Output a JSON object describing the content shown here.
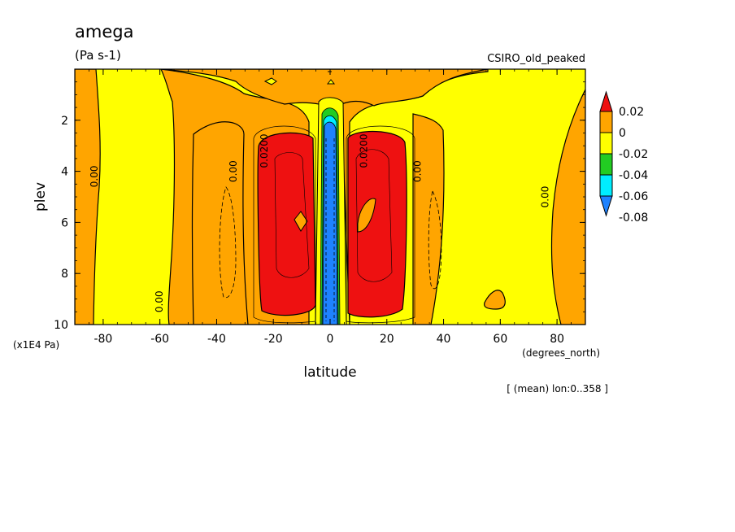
{
  "chart_data": {
    "type": "contour",
    "title": "amega",
    "units": "(Pa s-1)",
    "dataset": "CSIRO_old_peaked",
    "xlabel": "latitude",
    "ylabel": "plev",
    "x_units": "(degrees_north)",
    "y_units": "(x1E4 Pa)",
    "footer": "[ (mean) lon:0..358 ]",
    "xlim": [
      -90,
      90
    ],
    "ylim": [
      10,
      0
    ],
    "x_ticks": [
      "-80",
      "-60",
      "-40",
      "-20",
      "0",
      "20",
      "40",
      "60",
      "80"
    ],
    "x_tick_values": [
      -80,
      -60,
      -40,
      -20,
      0,
      20,
      40,
      60,
      80
    ],
    "y_ticks": [
      "2",
      "4",
      "6",
      "8",
      "10"
    ],
    "y_tick_values": [
      2,
      4,
      6,
      8,
      10
    ],
    "colorbar": {
      "labels": [
        "0.02",
        "0",
        "-0.02",
        "-0.04",
        "-0.06",
        "-0.08"
      ],
      "levels": [
        0.02,
        0,
        -0.02,
        -0.04,
        -0.06,
        -0.08
      ],
      "colors": [
        "#ee1111",
        "#ffa500",
        "#ffff00",
        "#22cc22",
        "#00eeff",
        "#1e82ff"
      ]
    },
    "contour_labels": [
      {
        "text": "0.00",
        "lat": -82,
        "plev": 4.2
      },
      {
        "text": "0.00",
        "lat": -59,
        "plev": 9.1
      },
      {
        "text": "0.00",
        "lat": -33,
        "plev": 4.0
      },
      {
        "text": "0.0200",
        "lat": -22,
        "plev": 3.2
      },
      {
        "text": "0.0200",
        "lat": 13,
        "plev": 3.2
      },
      {
        "text": "0.00",
        "lat": 32,
        "plev": 4.0
      },
      {
        "text": "0.00",
        "lat": 77,
        "plev": 5.0
      }
    ],
    "regions": {
      "background": "yellow (-0.02..0)",
      "orange_positive": "0..0.02 band over 20S-30N outside equator, polar edges",
      "red_positive": ">0.02 cores near 20S and 15N, 2.5-9.5 x1E4 Pa",
      "blue_negative": "<-0.08 equatorial core, 1.5-10 x1E4 Pa"
    }
  }
}
